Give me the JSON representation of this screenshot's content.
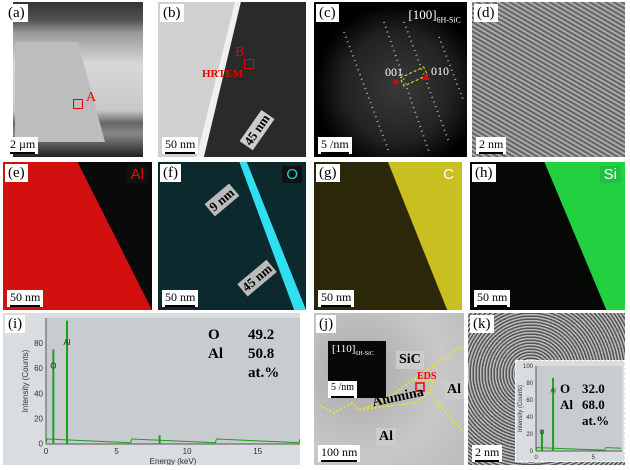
{
  "panels": {
    "a": {
      "label": "(a)",
      "marker": "A",
      "scale": "2 µm"
    },
    "b": {
      "label": "(b)",
      "marker": "B",
      "marker_sub": "HRTEM",
      "scale": "50 nm",
      "thickness": "45 nm"
    },
    "c": {
      "label": "(c)",
      "zone": "[100]",
      "zone_sub": "6H-SiC",
      "spot1": "001",
      "spot2": "010",
      "scale": "5 /nm"
    },
    "d": {
      "label": "(d)",
      "scale": "2 nm"
    },
    "e": {
      "label": "(e)",
      "element": "Al",
      "color": "#e01010",
      "scale": "50 nm"
    },
    "f": {
      "label": "(f)",
      "element": "O",
      "color": "#20d0e0",
      "thickness1": "9 nm",
      "thickness2": "45 nm",
      "scale": "50 nm"
    },
    "g": {
      "label": "(g)",
      "element": "C",
      "color": "#d8d020",
      "scale": "50 nm"
    },
    "h": {
      "label": "(h)",
      "element": "Si",
      "color": "#20d040",
      "scale": "50 nm"
    },
    "i": {
      "label": "(i)",
      "comp": [
        {
          "el": "O",
          "val": "49.2"
        },
        {
          "el": "Al",
          "val": "50.8"
        }
      ],
      "unit": "at.%"
    },
    "j": {
      "label": "(j)",
      "zone": "[110]",
      "zone_sub": "6H-SiC",
      "inset_scale": "5 /nm",
      "sic": "SiC",
      "alumina": "Alumina",
      "al1": "Al",
      "al2": "Al",
      "eds": "EDS",
      "scale": "100 nm"
    },
    "k": {
      "label": "(k)",
      "comp": [
        {
          "el": "O",
          "val": "32.0"
        },
        {
          "el": "Al",
          "val": "68.0"
        }
      ],
      "unit": "at.%",
      "scale": "2 nm"
    }
  },
  "chart_data": [
    {
      "type": "line",
      "panel": "i",
      "xlabel": "Energy (keV)",
      "ylabel": "Intensity (Counts)",
      "xlim": [
        0,
        18
      ],
      "ylim": [
        0,
        100
      ],
      "xticks": [
        0,
        5,
        10,
        15
      ],
      "yticks": [
        0,
        20,
        40,
        60,
        80
      ],
      "peaks": [
        {
          "x": 0.52,
          "y": 75,
          "label": "O"
        },
        {
          "x": 1.49,
          "y": 98,
          "label": "Al"
        },
        {
          "x": 8.05,
          "y": 7,
          "label": ""
        }
      ],
      "color": "#1aa01a"
    },
    {
      "type": "line",
      "panel": "k",
      "xlabel": "",
      "ylabel": "Intensity (Counts)",
      "xlim": [
        0,
        7.5
      ],
      "ylim": [
        0,
        100
      ],
      "xticks": [
        0,
        5
      ],
      "yticks": [
        0,
        20,
        40,
        60,
        80,
        100
      ],
      "peaks": [
        {
          "x": 0.52,
          "y": 25,
          "label": "O"
        },
        {
          "x": 1.49,
          "y": 86,
          "label": "Al"
        }
      ],
      "color": "#1aa01a"
    }
  ]
}
